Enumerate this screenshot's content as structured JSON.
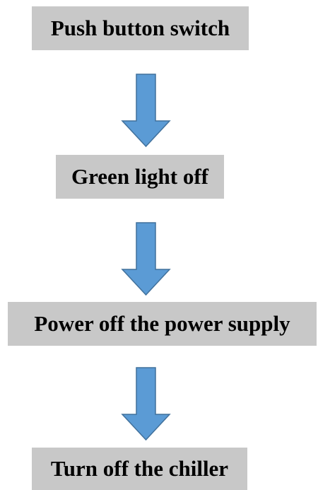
{
  "nodes": [
    {
      "label": "Push button switch"
    },
    {
      "label": "Green light off"
    },
    {
      "label": "Power off the power supply"
    },
    {
      "label": "Turn off the chiller"
    }
  ]
}
